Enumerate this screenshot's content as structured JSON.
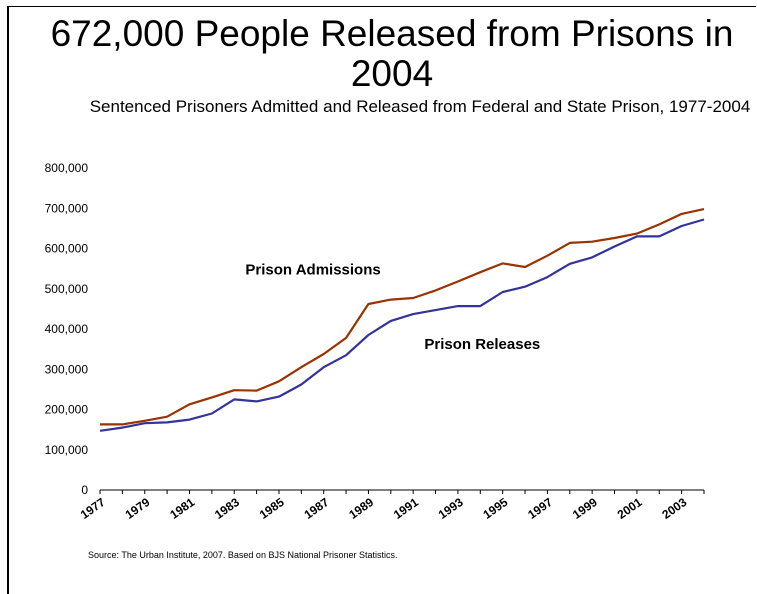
{
  "header": {
    "title": "672,000 People Released from Prisons in 2004",
    "subtitle": "Sentenced Prisoners Admitted and Released from Federal and State Prison, 1977-2004"
  },
  "footer": {
    "source": "Source: The Urban Institute, 2007. Based on BJS National Prisoner Statistics."
  },
  "chart_data": {
    "type": "line",
    "title": "",
    "xlabel": "",
    "ylabel": "",
    "ylim": [
      0,
      800000
    ],
    "yticks": [
      0,
      100000,
      200000,
      300000,
      400000,
      500000,
      600000,
      700000,
      800000
    ],
    "ytick_labels": [
      "0",
      "100,000",
      "200,000",
      "300,000",
      "400,000",
      "500,000",
      "600,000",
      "700,000",
      "800,000"
    ],
    "xtick_labels": [
      "1977",
      "1979",
      "1981",
      "1983",
      "1985",
      "1987",
      "1989",
      "1991",
      "1993",
      "1995",
      "1997",
      "1999",
      "2001",
      "2003"
    ],
    "grid": false,
    "x": [
      1977,
      1978,
      1979,
      1980,
      1981,
      1982,
      1983,
      1984,
      1985,
      1986,
      1987,
      1988,
      1989,
      1990,
      1991,
      1992,
      1993,
      1994,
      1995,
      1996,
      1997,
      1998,
      1999,
      2000,
      2001,
      2002,
      2003,
      2004
    ],
    "series": [
      {
        "name": "Prison Admissions",
        "color": "#993300",
        "values": [
          163000,
          163000,
          172000,
          182000,
          213000,
          230000,
          248000,
          247000,
          270000,
          305000,
          338000,
          378000,
          462000,
          473000,
          477000,
          496000,
          518000,
          541000,
          563000,
          554000,
          582000,
          614000,
          617000,
          626000,
          637000,
          660000,
          686000,
          698000
        ]
      },
      {
        "name": "Prison Releases",
        "color": "#333399",
        "values": [
          147000,
          155000,
          166000,
          168000,
          175000,
          190000,
          225000,
          220000,
          232000,
          262000,
          305000,
          335000,
          385000,
          420000,
          437000,
          447000,
          457000,
          457000,
          492000,
          505000,
          529000,
          562000,
          578000,
          605000,
          630000,
          630000,
          656000,
          672000
        ]
      }
    ],
    "annotations": [
      {
        "text": "Prison Admissions",
        "series": 0
      },
      {
        "text": "Prison Releases",
        "series": 1
      }
    ]
  }
}
